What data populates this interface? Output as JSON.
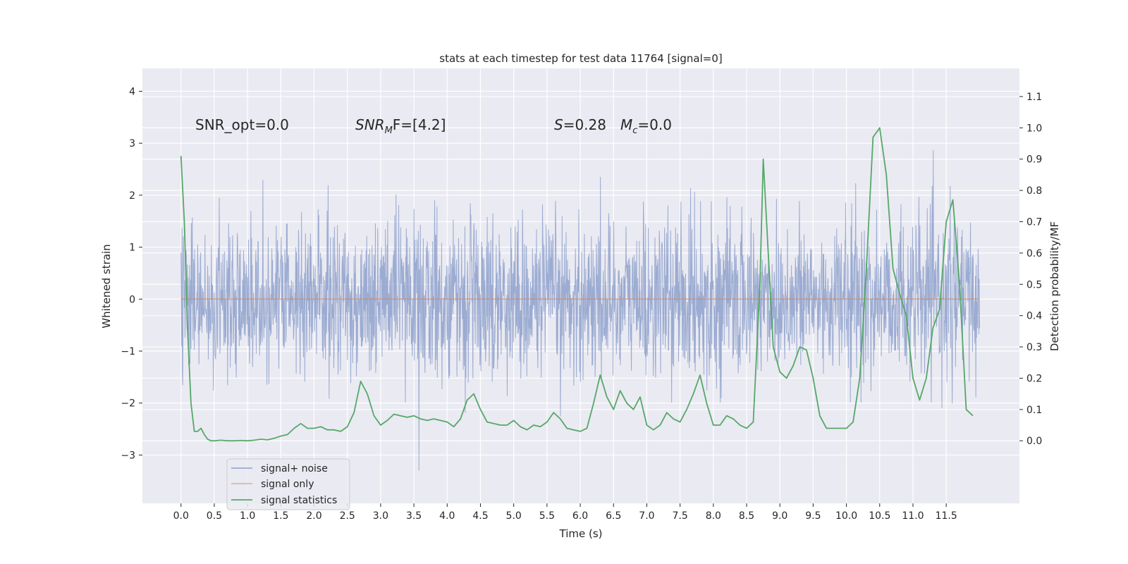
{
  "chart_data": {
    "type": "line",
    "title": "stats at each timestep for test data 11764 [signal=0]",
    "xlabel": "Time (s)",
    "ylabel_left": "Whitened strain",
    "ylabel_right": "Detection probability/MF",
    "xlim": [
      -0.58,
      12.6
    ],
    "ylim_left": [
      -3.93,
      4.44
    ],
    "ylim_right": [
      -0.2,
      1.19
    ],
    "x_ticks": [
      0.0,
      0.5,
      1.0,
      1.5,
      2.0,
      2.5,
      3.0,
      3.5,
      4.0,
      4.5,
      5.0,
      5.5,
      6.0,
      6.5,
      7.0,
      7.5,
      8.0,
      8.5,
      9.0,
      9.5,
      10.0,
      10.5,
      11.0,
      11.5
    ],
    "x_tick_labels": [
      "0.0",
      "0.5",
      "1.0",
      "1.5",
      "2.0",
      "2.5",
      "3.0",
      "3.5",
      "4.0",
      "4.5",
      "5.0",
      "5.5",
      "6.0",
      "6.5",
      "7.0",
      "7.5",
      "8.0",
      "8.5",
      "9.0",
      "9.5",
      "10.0",
      "10.5",
      "11.0",
      "11.5"
    ],
    "y_ticks_left": [
      -3,
      -2,
      -1,
      0,
      1,
      2,
      3,
      4
    ],
    "y_tick_labels_left": [
      "−3",
      "−2",
      "−1",
      "0",
      "1",
      "2",
      "3",
      "4"
    ],
    "y_ticks_right": [
      0.0,
      0.1,
      0.2,
      0.3,
      0.4,
      0.5,
      0.6,
      0.7,
      0.8,
      0.9,
      1.0,
      1.1
    ],
    "y_tick_labels_right": [
      "0.0",
      "0.1",
      "0.2",
      "0.3",
      "0.4",
      "0.5",
      "0.6",
      "0.7",
      "0.8",
      "0.9",
      "1.0",
      "1.1"
    ],
    "annotations": {
      "snr_opt": "SNR_opt=0.0",
      "snr_mf_main": "SNR",
      "snr_mf_sub": "M",
      "snr_mf_tail": "F=[4.2]",
      "s_sym": "S",
      "s_val": "=0.28",
      "mc_sym": "M",
      "mc_sub": "c",
      "mc_val": "=0.0"
    },
    "legend": {
      "position": "lower-left",
      "entries": [
        "signal+ noise",
        "signal only",
        "signal statistics"
      ]
    },
    "series": [
      {
        "name": "signal+ noise",
        "axis": "left",
        "color": "#8da0cb",
        "generated_noise": {
          "count": 2400,
          "x_start": 0.0,
          "x_end": 12.0,
          "sigma": 0.75
        }
      },
      {
        "name": "signal only",
        "axis": "left",
        "color": "#dd8452",
        "x": [
          0.0,
          12.0
        ],
        "y": [
          0.0,
          0.0
        ]
      },
      {
        "name": "signal statistics",
        "axis": "right",
        "color": "#55a868",
        "x": [
          0.0,
          0.05,
          0.1,
          0.15,
          0.2,
          0.25,
          0.3,
          0.35,
          0.4,
          0.45,
          0.5,
          0.6,
          0.7,
          0.8,
          0.9,
          1.0,
          1.1,
          1.2,
          1.3,
          1.4,
          1.5,
          1.6,
          1.7,
          1.8,
          1.9,
          2.0,
          2.1,
          2.2,
          2.3,
          2.4,
          2.5,
          2.6,
          2.7,
          2.8,
          2.9,
          3.0,
          3.1,
          3.2,
          3.3,
          3.4,
          3.5,
          3.6,
          3.7,
          3.8,
          3.9,
          4.0,
          4.1,
          4.2,
          4.3,
          4.4,
          4.5,
          4.6,
          4.7,
          4.8,
          4.9,
          5.0,
          5.1,
          5.2,
          5.3,
          5.4,
          5.5,
          5.6,
          5.7,
          5.8,
          5.9,
          6.0,
          6.1,
          6.2,
          6.3,
          6.4,
          6.5,
          6.6,
          6.7,
          6.8,
          6.9,
          7.0,
          7.1,
          7.2,
          7.3,
          7.4,
          7.5,
          7.6,
          7.7,
          7.8,
          7.9,
          8.0,
          8.1,
          8.2,
          8.3,
          8.4,
          8.5,
          8.6,
          8.7,
          8.75,
          8.8,
          8.9,
          9.0,
          9.1,
          9.2,
          9.3,
          9.4,
          9.5,
          9.6,
          9.7,
          9.8,
          9.9,
          10.0,
          10.1,
          10.2,
          10.3,
          10.4,
          10.5,
          10.6,
          10.7,
          10.8,
          10.9,
          11.0,
          11.1,
          11.2,
          11.3,
          11.4,
          11.5,
          11.6,
          11.7,
          11.8,
          11.9
        ],
        "y": [
          0.91,
          0.7,
          0.35,
          0.12,
          0.03,
          0.03,
          0.04,
          0.02,
          0.005,
          0.0,
          0.0,
          0.002,
          0.0,
          0.0,
          0.001,
          0.0,
          0.002,
          0.005,
          0.003,
          0.008,
          0.015,
          0.02,
          0.04,
          0.055,
          0.04,
          0.04,
          0.045,
          0.035,
          0.035,
          0.03,
          0.045,
          0.09,
          0.19,
          0.15,
          0.08,
          0.05,
          0.065,
          0.085,
          0.08,
          0.075,
          0.08,
          0.07,
          0.065,
          0.07,
          0.065,
          0.06,
          0.045,
          0.07,
          0.13,
          0.15,
          0.1,
          0.06,
          0.055,
          0.05,
          0.05,
          0.065,
          0.045,
          0.035,
          0.05,
          0.045,
          0.06,
          0.09,
          0.07,
          0.04,
          0.035,
          0.03,
          0.04,
          0.12,
          0.21,
          0.14,
          0.1,
          0.16,
          0.12,
          0.1,
          0.14,
          0.05,
          0.035,
          0.05,
          0.09,
          0.07,
          0.06,
          0.1,
          0.15,
          0.21,
          0.12,
          0.05,
          0.05,
          0.08,
          0.07,
          0.05,
          0.04,
          0.06,
          0.5,
          0.9,
          0.7,
          0.3,
          0.22,
          0.2,
          0.24,
          0.3,
          0.29,
          0.2,
          0.08,
          0.04,
          0.04,
          0.04,
          0.04,
          0.06,
          0.2,
          0.55,
          0.97,
          1.0,
          0.85,
          0.55,
          0.47,
          0.4,
          0.2,
          0.13,
          0.2,
          0.36,
          0.42,
          0.7,
          0.77,
          0.5,
          0.1,
          0.08
        ]
      }
    ]
  }
}
